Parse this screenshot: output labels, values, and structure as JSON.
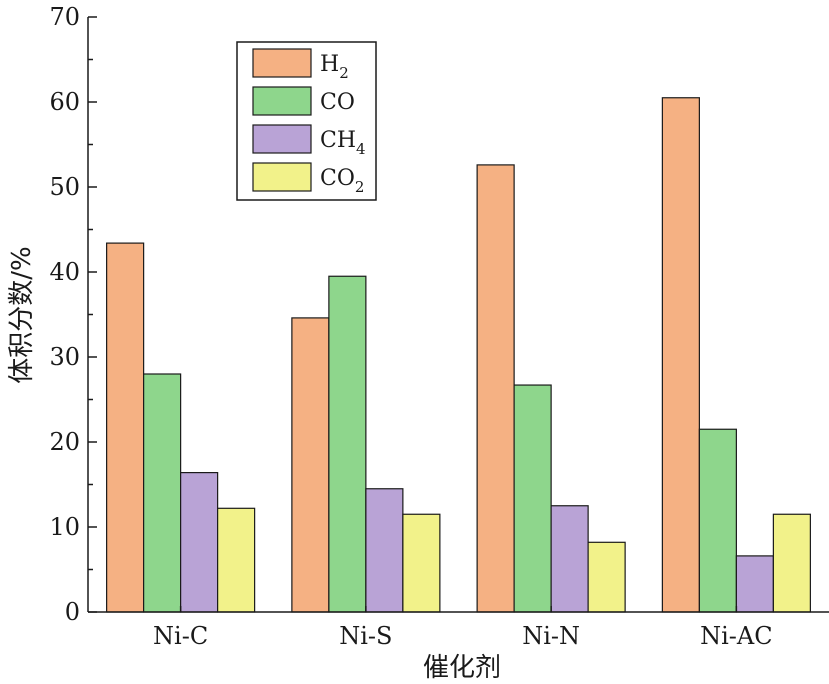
{
  "chart_data": {
    "type": "bar",
    "title": "",
    "xlabel": "催化剂",
    "ylabel": "体积分数/%",
    "categories": [
      "Ni-C",
      "Ni-S",
      "Ni-N",
      "Ni-AC"
    ],
    "ylim": [
      0,
      70
    ],
    "yticks": [
      "0",
      "10",
      "20",
      "30",
      "40",
      "50",
      "60",
      "70"
    ],
    "grid": false,
    "legend_position": "top-left",
    "series": [
      {
        "name": "H2",
        "label_main": "H",
        "label_sub": "2",
        "color": "#f5b183",
        "values": [
          43.4,
          34.6,
          52.6,
          60.5
        ]
      },
      {
        "name": "CO",
        "label_main": "CO",
        "label_sub": "",
        "color": "#8ed68c",
        "values": [
          28.0,
          39.5,
          26.7,
          21.5
        ]
      },
      {
        "name": "CH4",
        "label_main": "CH",
        "label_sub": "4",
        "color": "#b9a3d6",
        "values": [
          16.4,
          14.5,
          12.5,
          6.6
        ]
      },
      {
        "name": "CO2",
        "label_main": "CO",
        "label_sub": "2",
        "color": "#f2f28a",
        "values": [
          12.2,
          11.5,
          8.2,
          11.5
        ]
      }
    ]
  }
}
